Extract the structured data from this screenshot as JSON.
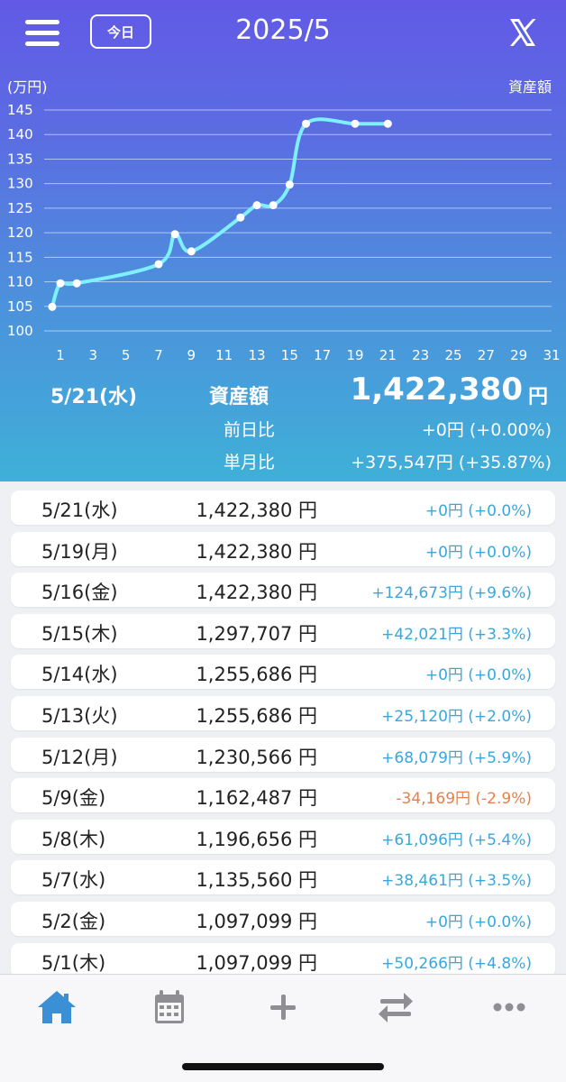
{
  "header": {
    "today_label": "今日",
    "month_title": "2025/5",
    "menu_icon": "hamburger-menu-icon",
    "x_icon": "x-logo-icon"
  },
  "chart_data": {
    "type": "line",
    "unit_label": "(万円)",
    "series_label": "資産額",
    "x_ticks": [
      "1",
      "3",
      "5",
      "7",
      "9",
      "11",
      "13",
      "15",
      "17",
      "19",
      "21",
      "23",
      "25",
      "27",
      "29",
      "31"
    ],
    "y_ticks": [
      "100",
      "105",
      "110",
      "115",
      "120",
      "125",
      "130",
      "135",
      "140",
      "145"
    ],
    "xlim": [
      1,
      31
    ],
    "ylim": [
      100,
      145
    ],
    "grid": true,
    "line_color": "#7ef0ff",
    "series": [
      {
        "x": [
          0.5,
          1,
          2,
          7,
          8,
          9,
          12,
          13,
          14,
          15,
          16,
          19,
          21
        ],
        "y": [
          104.9,
          109.7,
          109.7,
          113.6,
          119.7,
          116.2,
          123.1,
          125.6,
          125.6,
          129.8,
          142.2,
          142.2,
          142.2
        ]
      }
    ]
  },
  "summary": {
    "date": "5/21(水)",
    "label": "資産額",
    "value": "1,422,380",
    "unit": "円",
    "prev_day_label": "前日比",
    "prev_day_value": "+0円 (+0.00%)",
    "month_label": "単月比",
    "month_value": "+375,547円 (+35.87%)"
  },
  "rows": [
    {
      "date": "5/21(水)",
      "amount": "1,422,380 円",
      "change": "+0円 (+0.0%)",
      "negative": false
    },
    {
      "date": "5/19(月)",
      "amount": "1,422,380 円",
      "change": "+0円 (+0.0%)",
      "negative": false
    },
    {
      "date": "5/16(金)",
      "amount": "1,422,380 円",
      "change": "+124,673円 (+9.6%)",
      "negative": false
    },
    {
      "date": "5/15(木)",
      "amount": "1,297,707 円",
      "change": "+42,021円 (+3.3%)",
      "negative": false
    },
    {
      "date": "5/14(水)",
      "amount": "1,255,686 円",
      "change": "+0円 (+0.0%)",
      "negative": false
    },
    {
      "date": "5/13(火)",
      "amount": "1,255,686 円",
      "change": "+25,120円 (+2.0%)",
      "negative": false
    },
    {
      "date": "5/12(月)",
      "amount": "1,230,566 円",
      "change": "+68,079円 (+5.9%)",
      "negative": false
    },
    {
      "date": "5/9(金)",
      "amount": "1,162,487 円",
      "change": "-34,169円 (-2.9%)",
      "negative": true
    },
    {
      "date": "5/8(木)",
      "amount": "1,196,656 円",
      "change": "+61,096円 (+5.4%)",
      "negative": false
    },
    {
      "date": "5/7(水)",
      "amount": "1,135,560 円",
      "change": "+38,461円 (+3.5%)",
      "negative": false
    },
    {
      "date": "5/2(金)",
      "amount": "1,097,099 円",
      "change": "+0円 (+0.0%)",
      "negative": false
    },
    {
      "date": "5/1(木)",
      "amount": "1,097,099 円",
      "change": "+50,266円 (+4.8%)",
      "negative": false
    }
  ],
  "tabbar": {
    "active": "home",
    "icons": [
      "home-icon",
      "calendar-icon",
      "plus-icon",
      "transfer-icon",
      "more-icon"
    ],
    "active_color": "#3b8fd4",
    "inactive_color": "#8e8e93"
  }
}
